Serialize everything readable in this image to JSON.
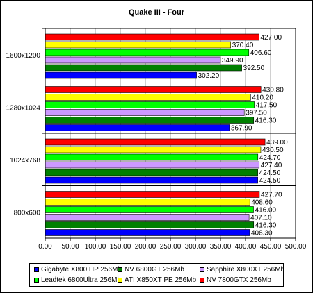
{
  "chart_data": {
    "type": "bar",
    "orientation": "horizontal",
    "title": "Quake III - Four",
    "xlabel": "",
    "ylabel": "",
    "xlim": [
      0,
      500
    ],
    "x_ticks": [
      "0.00",
      "50.00",
      "100.00",
      "150.00",
      "200.00",
      "250.00",
      "300.00",
      "350.00",
      "400.00",
      "450.00",
      "500.00"
    ],
    "categories": [
      "1600x1200",
      "1280x1024",
      "1024x768",
      "800x600"
    ],
    "grid": true,
    "legend_position": "bottom",
    "series": [
      {
        "name": "Gigabyte X800 HP 256Mb",
        "color": "#0000ff",
        "values": [
          302.2,
          367.9,
          424.5,
          408.3
        ],
        "labels": [
          "302.20",
          "367.90",
          "424.50",
          "408.30"
        ]
      },
      {
        "name": "NV 6800GT 256Mb",
        "color": "#008000",
        "values": [
          392.5,
          416.3,
          424.5,
          416.3
        ],
        "labels": [
          "392.50",
          "416.30",
          "424.50",
          "416.30"
        ]
      },
      {
        "name": "Sapphire X800XT 256Mb",
        "color": "#cc99ff",
        "values": [
          349.9,
          397.5,
          427.4,
          407.1
        ],
        "labels": [
          "349.90",
          "397.50",
          "427.40",
          "407.10"
        ]
      },
      {
        "name": "Leadtek 6800Ultra 256Mb",
        "color": "#00ff00",
        "values": [
          406.6,
          417.5,
          424.7,
          416.0
        ],
        "labels": [
          "406.60",
          "417.50",
          "424.70",
          "416.00"
        ]
      },
      {
        "name": "ATI X850XT PE 256Mb",
        "color": "#ffff00",
        "values": [
          370.4,
          410.2,
          430.5,
          408.6
        ],
        "labels": [
          "370.40",
          "410.20",
          "430.50",
          "408.60"
        ]
      },
      {
        "name": "NV 7800GTX 256Mb",
        "color": "#ff0000",
        "values": [
          427.0,
          430.8,
          439.0,
          427.7
        ],
        "labels": [
          "427.00",
          "430.80",
          "439.00",
          "427.70"
        ]
      }
    ]
  }
}
